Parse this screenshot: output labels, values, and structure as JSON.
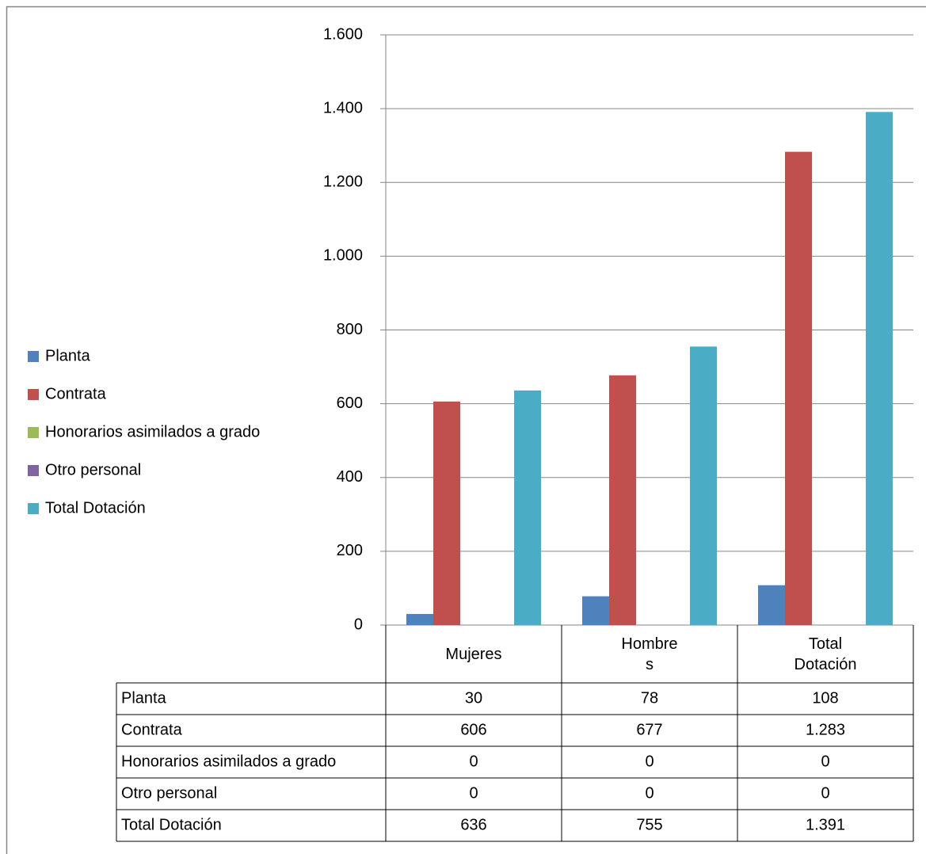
{
  "chart_data": {
    "type": "bar",
    "categories": [
      "Mujeres",
      "Hombres",
      "Total Dotación"
    ],
    "series": [
      {
        "name": "Planta",
        "color": "#4f81bd",
        "values": [
          30,
          78,
          108
        ]
      },
      {
        "name": "Contrata",
        "color": "#c0504d",
        "values": [
          606,
          677,
          1283
        ],
        "value_labels": [
          "606",
          "677",
          "1.283"
        ]
      },
      {
        "name": "Honorarios asimilados a grado",
        "color": "#9bbb59",
        "values": [
          0,
          0,
          0
        ]
      },
      {
        "name": "Otro personal",
        "color": "#8064a2",
        "values": [
          0,
          0,
          0
        ]
      },
      {
        "name": "Total Dotación",
        "color": "#4bacc6",
        "values": [
          636,
          755,
          1391
        ],
        "value_labels": [
          "636",
          "755",
          "1.391"
        ]
      }
    ],
    "ylim": [
      0,
      1600
    ],
    "yticks": [
      0,
      200,
      400,
      600,
      800,
      {
        "value": 1000,
        "label": "1.000"
      },
      {
        "value": 1200,
        "label": "1.200"
      },
      {
        "value": 1400,
        "label": "1.400"
      },
      {
        "value": 1600,
        "label": "1.600"
      }
    ],
    "grid": true,
    "legend": "left",
    "data_table": true
  }
}
